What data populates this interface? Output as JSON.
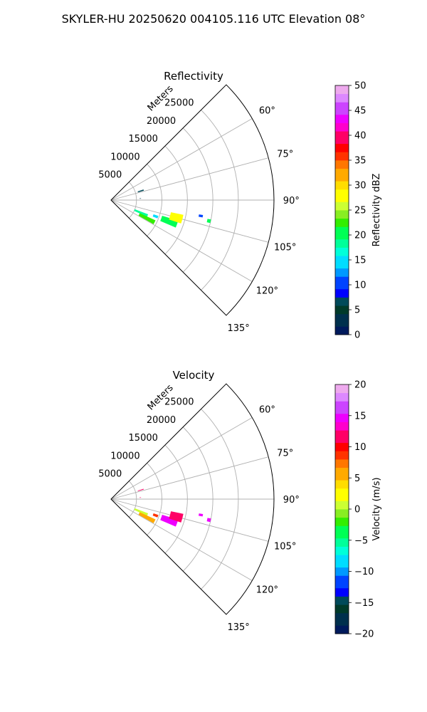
{
  "figure": {
    "suptitle": "SKYLER-HU  20250620  004105.116 UTC Elevation 08°"
  },
  "chart_data": [
    {
      "type": "polar-sector",
      "title": "Reflectivity",
      "radial_label": "Meters",
      "radial_ticks": [
        5000,
        10000,
        15000,
        20000,
        25000
      ],
      "radial_tick_labels": [
        "5000",
        "10000",
        "15000",
        "20000",
        "25000"
      ],
      "radial_max": 32000,
      "angle_range_deg": [
        45,
        135
      ],
      "angle_ticks": [
        60,
        75,
        90,
        105,
        120,
        135
      ],
      "angle_tick_labels": [
        "60°",
        "75°",
        "90°",
        "105°",
        "120°",
        "135°"
      ],
      "colorbar": {
        "label": "Reflectivity dBZ",
        "min": 0,
        "max": 50,
        "ticks": [
          0,
          5,
          10,
          15,
          20,
          25,
          30,
          35,
          40,
          45,
          50
        ],
        "tick_labels": [
          "0",
          "5",
          "10",
          "15",
          "20",
          "25",
          "30",
          "35",
          "40",
          "45",
          "50"
        ]
      },
      "echo_cells": [
        {
          "az": 73,
          "r_start": 5500,
          "r_end": 6700,
          "az_width": 2.0,
          "value": 6
        },
        {
          "az": 87,
          "r_start": 5600,
          "r_end": 5900,
          "az_width": 0.8,
          "value": 2
        },
        {
          "az": 113,
          "r_start": 5000,
          "r_end": 7800,
          "az_width": 4.0,
          "value": 18
        },
        {
          "az": 117,
          "r_start": 6200,
          "r_end": 9600,
          "az_width": 5.0,
          "value": 22
        },
        {
          "az": 110,
          "r_start": 8800,
          "r_end": 9800,
          "az_width": 3.0,
          "value": 14
        },
        {
          "az": 110,
          "r_start": 10500,
          "r_end": 13800,
          "az_width": 6.0,
          "value": 21
        },
        {
          "az": 105,
          "r_start": 12000,
          "r_end": 14500,
          "az_width": 7.0,
          "value": 27
        },
        {
          "az": 100,
          "r_start": 17500,
          "r_end": 18300,
          "az_width": 1.5,
          "value": 11
        },
        {
          "az": 102,
          "r_start": 19300,
          "r_end": 20000,
          "az_width": 2.0,
          "value": 21
        }
      ]
    },
    {
      "type": "polar-sector",
      "title": "Velocity",
      "radial_label": "Meters",
      "radial_ticks": [
        5000,
        10000,
        15000,
        20000,
        25000
      ],
      "radial_tick_labels": [
        "5000",
        "10000",
        "15000",
        "20000",
        "25000"
      ],
      "radial_max": 32000,
      "angle_range_deg": [
        45,
        135
      ],
      "angle_ticks": [
        60,
        75,
        90,
        105,
        120,
        135
      ],
      "angle_tick_labels": [
        "60°",
        "75°",
        "90°",
        "105°",
        "120°",
        "135°"
      ],
      "colorbar": {
        "label": "Velocity (m/s)",
        "min": -20,
        "max": 20,
        "ticks": [
          -20,
          -15,
          -10,
          -5,
          0,
          5,
          10,
          15,
          20
        ],
        "tick_labels": [
          "−20",
          "−15",
          "−10",
          "−5",
          "0",
          "5",
          "10",
          "15",
          "20"
        ]
      },
      "echo_cells": [
        {
          "az": 73,
          "r_start": 5500,
          "r_end": 6700,
          "az_width": 1.2,
          "value": 11
        },
        {
          "az": 87,
          "r_start": 5600,
          "r_end": 5900,
          "az_width": 0.8,
          "value": 11
        },
        {
          "az": 113,
          "r_start": 5000,
          "r_end": 7800,
          "az_width": 4.0,
          "value": 1
        },
        {
          "az": 117,
          "r_start": 6200,
          "r_end": 9600,
          "az_width": 5.0,
          "value": 5
        },
        {
          "az": 110,
          "r_start": 8800,
          "r_end": 9800,
          "az_width": 3.0,
          "value": 9
        },
        {
          "az": 110,
          "r_start": 10500,
          "r_end": 13800,
          "az_width": 6.0,
          "value": 14
        },
        {
          "az": 105,
          "r_start": 12000,
          "r_end": 14500,
          "az_width": 7.0,
          "value": 11
        },
        {
          "az": 100,
          "r_start": 17500,
          "r_end": 18300,
          "az_width": 1.5,
          "value": 15
        },
        {
          "az": 102,
          "r_start": 19300,
          "r_end": 20000,
          "az_width": 2.0,
          "value": 15
        }
      ]
    }
  ]
}
